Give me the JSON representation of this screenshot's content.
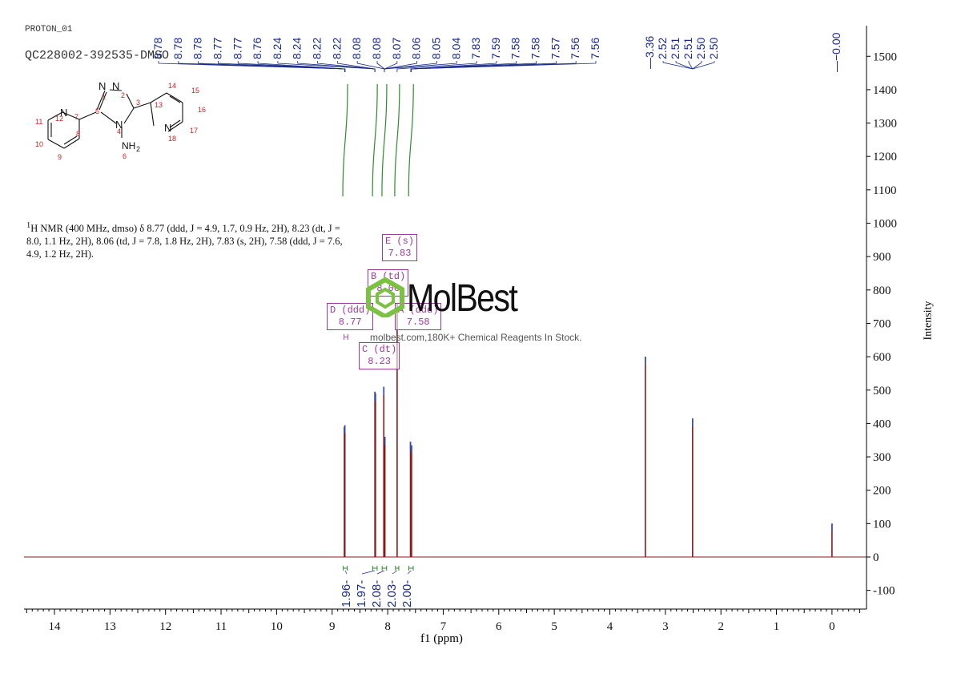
{
  "header": {
    "experiment": "PROTON_01",
    "sample": "QC228002-392535-DMSO"
  },
  "summary": {
    "nucleus_sup": "1",
    "text": "H NMR (400 MHz, dmso) δ 8.77 (ddd, J = 4.9, 1.7, 0.9 Hz, 2H), 8.23 (dt, J = 8.0, 1.1 Hz, 2H), 8.06 (td, J = 7.8, 1.8 Hz, 2H), 7.83 (s, 2H), 7.58 (ddd, J = 7.6, 4.9, 1.2 Hz, 2H)."
  },
  "watermark": {
    "brand": "MolBest",
    "tagline": "molbest.com,180K+ Chemical Reagents In Stock."
  },
  "structure": {
    "atoms": [
      {
        "label": "N",
        "num": "1"
      },
      {
        "label": "N",
        "num": "2"
      },
      {
        "label": "",
        "num": "3"
      },
      {
        "label": "N",
        "num": "4"
      },
      {
        "label": "",
        "num": "5"
      },
      {
        "label": "NH2",
        "num": "6"
      },
      {
        "label": "",
        "num": "7"
      },
      {
        "label": "",
        "num": "8"
      },
      {
        "label": "",
        "num": "9"
      },
      {
        "label": "",
        "num": "10"
      },
      {
        "label": "",
        "num": "11"
      },
      {
        "label": "N",
        "num": "12"
      },
      {
        "label": "",
        "num": "13"
      },
      {
        "label": "",
        "num": "14"
      },
      {
        "label": "",
        "num": "15"
      },
      {
        "label": "",
        "num": "16"
      },
      {
        "label": "",
        "num": "17"
      },
      {
        "label": "N",
        "num": "18"
      }
    ]
  },
  "colors": {
    "spectrum": "#8b1a1a",
    "peak_labels": "#1a2a8c",
    "integral": "#2e8b2e",
    "multiplet_box": "#9b3a9b",
    "axis": "#000000",
    "structure_numbers": "#cc2222",
    "watermark_logo": "#7cc242"
  },
  "chart_data": {
    "type": "line",
    "title": "",
    "xlabel": "f1 (ppm)",
    "ylabel": "Intensity",
    "xlim": [
      14.5,
      -0.55
    ],
    "ylim": [
      -150,
      1600
    ],
    "x_reversed": true,
    "x_ticks": [
      14,
      13,
      12,
      11,
      10,
      9,
      8,
      7,
      6,
      5,
      4,
      3,
      2,
      1,
      0
    ],
    "y_ticks": [
      -100,
      0,
      100,
      200,
      300,
      400,
      500,
      600,
      700,
      800,
      900,
      1000,
      1100,
      1200,
      1300,
      1400,
      1500
    ],
    "peaks": [
      {
        "ppm": 8.78,
        "height": 390
      },
      {
        "ppm": 8.77,
        "height": 395
      },
      {
        "ppm": 8.23,
        "height": 495
      },
      {
        "ppm": 8.22,
        "height": 490
      },
      {
        "ppm": 8.07,
        "height": 510
      },
      {
        "ppm": 8.05,
        "height": 360
      },
      {
        "ppm": 7.83,
        "height": 760
      },
      {
        "ppm": 7.59,
        "height": 345
      },
      {
        "ppm": 7.57,
        "height": 335
      },
      {
        "ppm": 3.36,
        "height": 600
      },
      {
        "ppm": 2.51,
        "height": 415
      },
      {
        "ppm": 0.0,
        "height": 100
      }
    ],
    "peak_labels": [
      "8.78",
      "8.78",
      "8.78",
      "8.77",
      "8.77",
      "8.76",
      "8.24",
      "8.24",
      "8.22",
      "8.22",
      "8.08",
      "8.08",
      "8.07",
      "8.06",
      "8.05",
      "8.04",
      "7.83",
      "7.59",
      "7.58",
      "7.58",
      "7.57",
      "7.56",
      "7.56"
    ],
    "peak_labels_right": [
      "3.36",
      "2.52",
      "2.51",
      "2.51",
      "2.50",
      "2.50"
    ],
    "peak_label_zero": "-0.00",
    "integrals": [
      {
        "label": "1.96",
        "from": 8.8,
        "to": 8.73
      },
      {
        "label": "1.97",
        "from": 8.27,
        "to": 8.19
      },
      {
        "label": "2.08",
        "from": 8.1,
        "to": 8.02
      },
      {
        "label": "2.03",
        "from": 7.86,
        "to": 7.8
      },
      {
        "label": "2.00",
        "from": 7.62,
        "to": 7.54
      }
    ],
    "multiplets": [
      {
        "id": "D",
        "type": "ddd",
        "ppm": "8.77"
      },
      {
        "id": "C",
        "type": "dt",
        "ppm": "8.23"
      },
      {
        "id": "B",
        "type": "td",
        "ppm": "8.06"
      },
      {
        "id": "E",
        "type": "s",
        "ppm": "7.83"
      },
      {
        "id": "A",
        "type": "ddd",
        "ppm": "7.58"
      }
    ]
  }
}
